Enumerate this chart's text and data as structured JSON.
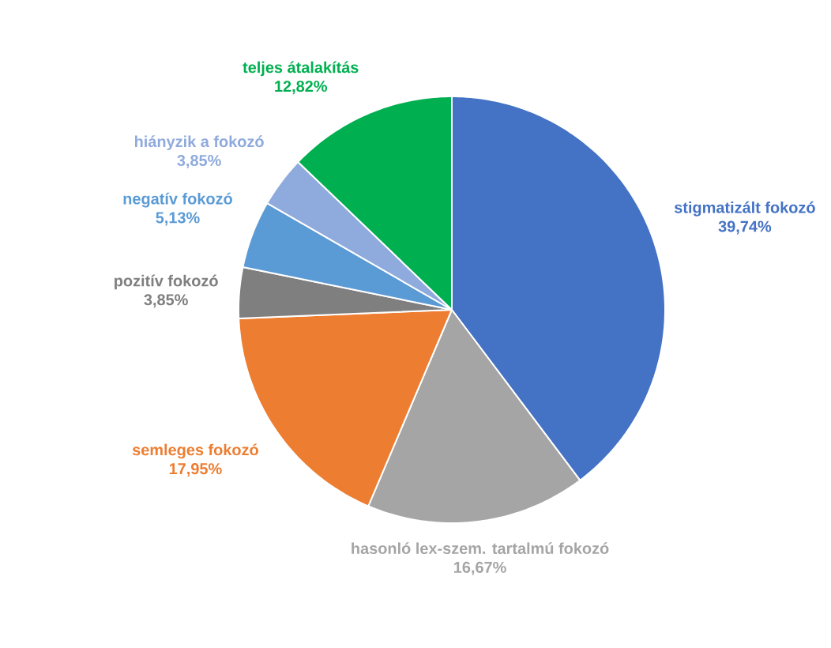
{
  "chart_data": {
    "type": "pie",
    "categories": [
      "stigmatizált fokozó",
      "hasonló lex-szem. tartalmú fokozó",
      "semleges fokozó",
      "pozitív fokozó",
      "negatív fokozó",
      "hiányzik a fokozó",
      "teljes átalakítás"
    ],
    "values": [
      39.74,
      16.67,
      17.95,
      3.85,
      5.13,
      3.85,
      12.82
    ],
    "value_labels": [
      "39,74%",
      "16,67%",
      "17,95%",
      "3,85%",
      "5,13%",
      "3,85%",
      "12,82%"
    ],
    "colors": [
      "#4472c4",
      "#a5a5a5",
      "#ed7d31",
      "#7f7f7f",
      "#5b9bd5",
      "#8faadc",
      "#00b050"
    ]
  }
}
